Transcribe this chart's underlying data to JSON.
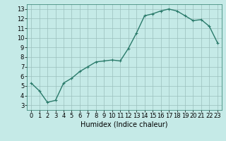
{
  "x": [
    0,
    1,
    2,
    3,
    4,
    5,
    6,
    7,
    8,
    9,
    10,
    11,
    12,
    13,
    14,
    15,
    16,
    17,
    18,
    19,
    20,
    21,
    22,
    23
  ],
  "y": [
    5.3,
    4.5,
    3.3,
    3.5,
    5.3,
    5.8,
    6.5,
    7.0,
    7.5,
    7.6,
    7.7,
    7.6,
    8.9,
    10.5,
    12.3,
    12.5,
    12.8,
    13.0,
    12.8,
    12.3,
    11.8,
    11.9,
    11.2,
    9.5
  ],
  "line_color": "#2a7a6a",
  "marker": "+",
  "marker_size": 3,
  "xlabel": "Humidex (Indice chaleur)",
  "xlim": [
    -0.5,
    23.5
  ],
  "ylim": [
    2.5,
    13.5
  ],
  "yticks": [
    3,
    4,
    5,
    6,
    7,
    8,
    9,
    10,
    11,
    12,
    13
  ],
  "xticks": [
    0,
    1,
    2,
    3,
    4,
    5,
    6,
    7,
    8,
    9,
    10,
    11,
    12,
    13,
    14,
    15,
    16,
    17,
    18,
    19,
    20,
    21,
    22,
    23
  ],
  "bg_color": "#c5eae7",
  "grid_color": "#9bbfbd",
  "linewidth": 1.0,
  "xlabel_fontsize": 7,
  "tick_fontsize": 6
}
